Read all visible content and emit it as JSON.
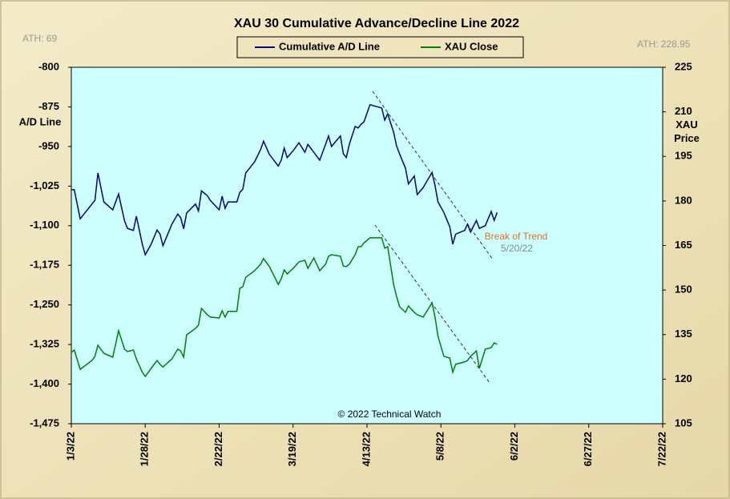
{
  "chart_data": {
    "type": "line",
    "title": "XAU 30 Cumulative  Advance/Decline  Line 2022",
    "annotations": {
      "ath_left": "ATH: 69",
      "ath_right": "ATH: 228.95",
      "break": "Break of Trend",
      "break_date": "5/20/22",
      "copyright": "© 2022 Technical Watch"
    },
    "ylabel": "A/D Line",
    "y2label": "XAU Price",
    "x": [
      "2022-01-03",
      "2022-01-04",
      "2022-01-06",
      "2022-01-10",
      "2022-01-11",
      "2022-01-12",
      "2022-01-14",
      "2022-01-17",
      "2022-01-19",
      "2022-01-21",
      "2022-01-22",
      "2022-01-24",
      "2022-01-25",
      "2022-01-27",
      "2022-01-28",
      "2022-01-30",
      "2022-02-01",
      "2022-02-02",
      "2022-02-03",
      "2022-02-06",
      "2022-02-08",
      "2022-02-09",
      "2022-02-10",
      "2022-02-11",
      "2022-02-14",
      "2022-02-15",
      "2022-02-16",
      "2022-02-18",
      "2022-02-19",
      "2022-02-22",
      "2022-02-23",
      "2022-02-24",
      "2022-02-25",
      "2022-02-28",
      "2022-03-01",
      "2022-03-02",
      "2022-03-03",
      "2022-03-06",
      "2022-03-08",
      "2022-03-09",
      "2022-03-11",
      "2022-03-14",
      "2022-03-15",
      "2022-03-16",
      "2022-03-17",
      "2022-03-19",
      "2022-03-21",
      "2022-03-23",
      "2022-03-24",
      "2022-03-26",
      "2022-03-28",
      "2022-03-30",
      "2022-03-31",
      "2022-04-01",
      "2022-04-04",
      "2022-04-05",
      "2022-04-06",
      "2022-04-07",
      "2022-04-09",
      "2022-04-10",
      "2022-04-11",
      "2022-04-12",
      "2022-04-14",
      "2022-04-16",
      "2022-04-18",
      "2022-04-19",
      "2022-04-20",
      "2022-04-22",
      "2022-04-23",
      "2022-04-24",
      "2022-04-26",
      "2022-04-27",
      "2022-04-29",
      "2022-04-30",
      "2022-05-02",
      "2022-05-03",
      "2022-05-05",
      "2022-05-06",
      "2022-05-07",
      "2022-05-09",
      "2022-05-11",
      "2022-05-12",
      "2022-05-13",
      "2022-05-16",
      "2022-05-17",
      "2022-05-18",
      "2022-05-20",
      "2022-05-21",
      "2022-05-23",
      "2022-05-25",
      "2022-05-26",
      "2022-05-27"
    ],
    "series": [
      {
        "name": "Cumulative A/D Line",
        "color": "#000080",
        "axis": "y",
        "values": [
          -1032,
          -1032,
          -1087,
          -1059,
          -1052,
          -1000,
          -1055,
          -1070,
          -1040,
          -1091,
          -1105,
          -1109,
          -1082,
          -1135,
          -1155,
          -1135,
          -1108,
          -1116,
          -1138,
          -1097,
          -1078,
          -1085,
          -1106,
          -1076,
          -1059,
          -1072,
          -1034,
          -1043,
          -1052,
          -1070,
          -1044,
          -1067,
          -1055,
          -1055,
          -1037,
          -1031,
          -1000,
          -979,
          -956,
          -940,
          -965,
          -987,
          -976,
          -953,
          -971,
          -958,
          -943,
          -961,
          -946,
          -961,
          -976,
          -946,
          -930,
          -950,
          -930,
          -964,
          -971,
          -946,
          -912,
          -915,
          -908,
          -903,
          -871,
          -874,
          -877,
          -900,
          -888,
          -923,
          -949,
          -964,
          -991,
          -1021,
          -1006,
          -1041,
          -1028,
          -1018,
          -999,
          -1024,
          -1055,
          -1075,
          -1102,
          -1135,
          -1116,
          -1109,
          -1097,
          -1112,
          -1090,
          -1105,
          -1100,
          -1073,
          -1090,
          -1075
        ]
      },
      {
        "name": "XAU Close",
        "color": "#008000",
        "axis": "y2",
        "values": [
          129.0,
          129.8,
          123.3,
          126.3,
          127.7,
          131.4,
          128.7,
          127.4,
          136.3,
          130.1,
          129.3,
          129.8,
          126.8,
          122.3,
          120.9,
          123.6,
          126.3,
          125.0,
          124.1,
          126.8,
          130.1,
          129.5,
          127.4,
          134.9,
          137.1,
          138.2,
          143.8,
          141.7,
          140.9,
          140.6,
          143.0,
          140.9,
          142.8,
          142.8,
          150.6,
          151.1,
          154.3,
          156.5,
          158.7,
          160.6,
          157.9,
          151.9,
          153.8,
          156.8,
          155.4,
          157.3,
          159.5,
          160.0,
          157.3,
          160.8,
          156.5,
          158.7,
          161.4,
          161.9,
          161.4,
          158.1,
          157.9,
          158.7,
          161.9,
          164.6,
          164.6,
          165.9,
          167.6,
          167.6,
          167.6,
          164.1,
          164.6,
          151.9,
          147.9,
          144.4,
          142.5,
          144.6,
          142.5,
          141.7,
          140.9,
          142.5,
          145.7,
          140.9,
          134.4,
          127.7,
          127.1,
          122.3,
          125.0,
          125.8,
          126.3,
          127.7,
          129.5,
          123.6,
          130.1,
          130.6,
          132.2,
          131.7
        ]
      }
    ],
    "xlim": [
      "2022-01-03",
      "2022-07-22"
    ],
    "xticks": [
      {
        "value": "2022-01-03",
        "label": "1/3/22"
      },
      {
        "value": "2022-01-28",
        "label": "1/28/22"
      },
      {
        "value": "2022-02-22",
        "label": "2/22/22"
      },
      {
        "value": "2022-03-19",
        "label": "3/19/22"
      },
      {
        "value": "2022-04-13",
        "label": "4/13/22"
      },
      {
        "value": "2022-05-08",
        "label": "5/8/22"
      },
      {
        "value": "2022-06-02",
        "label": "6/2/22"
      },
      {
        "value": "2022-06-27",
        "label": "6/27/22"
      },
      {
        "value": "2022-07-22",
        "label": "7/22/22"
      }
    ],
    "ylim": [
      -1475,
      -800
    ],
    "yticks": [
      -800,
      -875,
      -950,
      {
        "value": -1025,
        "label": "-1,025"
      },
      {
        "value": -1100,
        "label": "-1,100"
      },
      {
        "value": -1175,
        "label": "-1,175"
      },
      {
        "value": -1250,
        "label": "-1,250"
      },
      {
        "value": -1325,
        "label": "-1,325"
      },
      {
        "value": -1400,
        "label": "-1,400"
      },
      {
        "value": -1475,
        "label": "-1,475"
      }
    ],
    "y2lim": [
      105,
      225
    ],
    "y2ticks": [
      105,
      120,
      135,
      150,
      165,
      180,
      195,
      210,
      225
    ],
    "plot_background": "#ccffff",
    "grid": false
  }
}
